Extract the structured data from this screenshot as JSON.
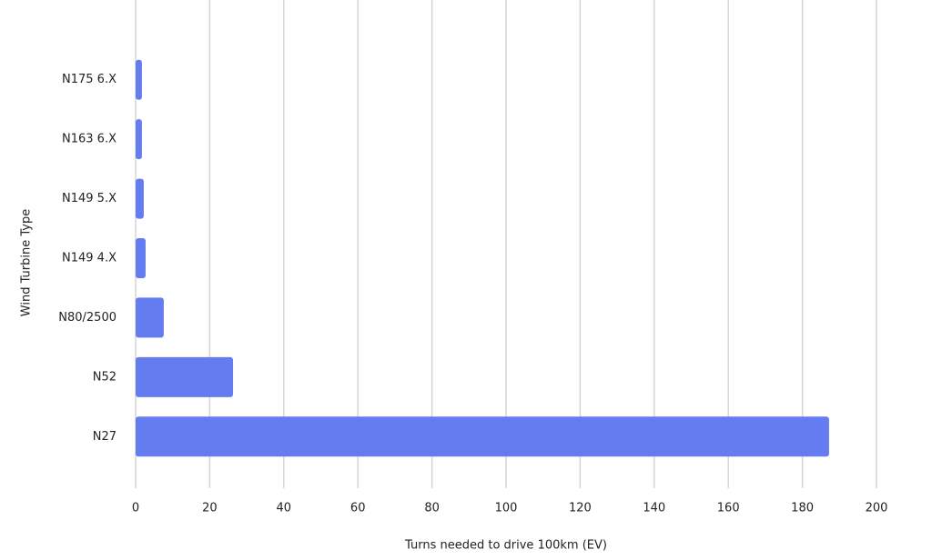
{
  "chart_data": {
    "type": "bar",
    "orientation": "horizontal",
    "categories": [
      "N175 6.X",
      "N163 6.X",
      "N149 5.X",
      "N149 4.X",
      "N80/2500",
      "N52",
      "N27"
    ],
    "values": [
      1.7,
      1.7,
      2.2,
      2.7,
      7.6,
      26.3,
      187.2
    ],
    "color": "#647cf0",
    "xlabel": "Turns needed to drive 100km (EV)",
    "ylabel": "Wind Turbine Type",
    "xlim": [
      0,
      200
    ],
    "xticks": [
      0,
      20,
      40,
      60,
      80,
      100,
      120,
      140,
      160,
      180,
      200
    ],
    "grid": true
  }
}
